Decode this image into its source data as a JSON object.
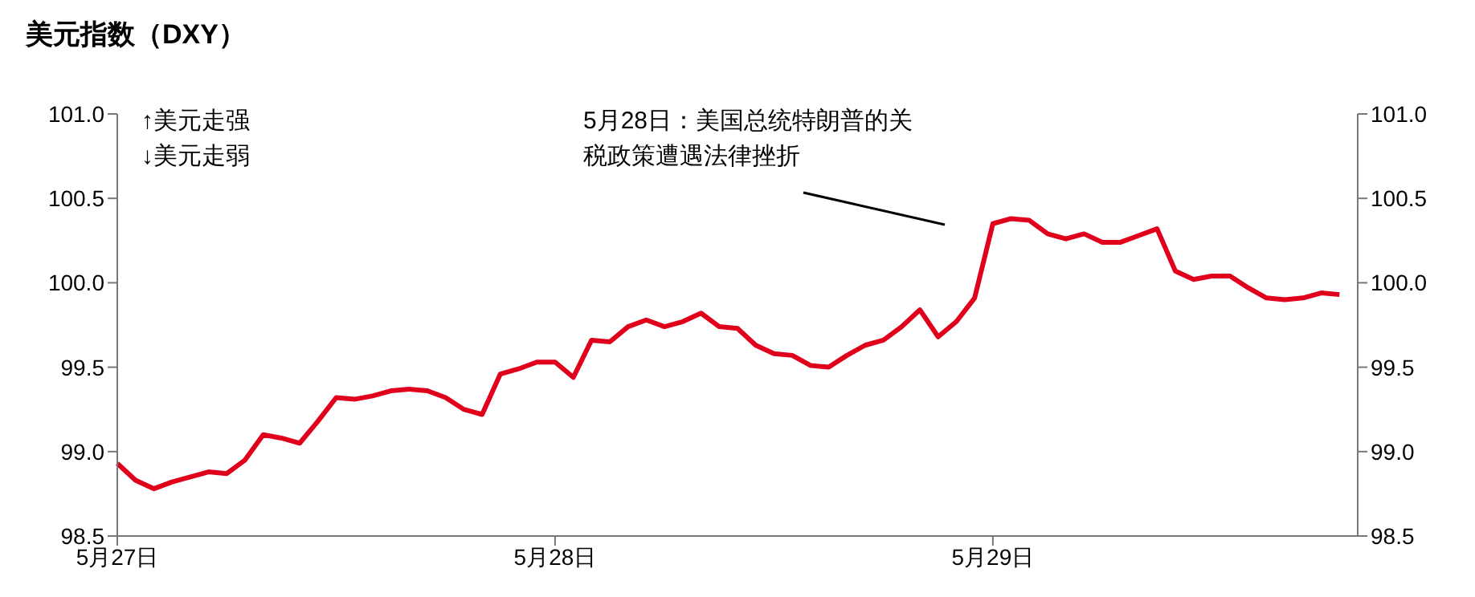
{
  "chart_data": {
    "type": "line",
    "title": "美元指数（DXY）",
    "categories": [
      "5月27日",
      null,
      null,
      null,
      null,
      null,
      null,
      null,
      null,
      null,
      null,
      null,
      null,
      null,
      null,
      null,
      null,
      null,
      null,
      null,
      null,
      null,
      null,
      null,
      "5月28日",
      null,
      null,
      null,
      null,
      null,
      null,
      null,
      null,
      null,
      null,
      null,
      null,
      null,
      null,
      null,
      null,
      null,
      null,
      null,
      null,
      null,
      null,
      null,
      "5月29日",
      null,
      null,
      null,
      null,
      null,
      null,
      null,
      null,
      null,
      null,
      null,
      null,
      null,
      null,
      null,
      null,
      null,
      null,
      null,
      null
    ],
    "series": [
      {
        "color": "#e0001b",
        "values": [
          98.93,
          98.83,
          98.78,
          98.82,
          98.85,
          98.88,
          98.87,
          98.95,
          99.1,
          99.08,
          99.05,
          99.18,
          99.32,
          99.31,
          99.33,
          99.36,
          99.37,
          99.36,
          99.32,
          99.25,
          99.22,
          99.46,
          99.49,
          99.53,
          99.53,
          99.44,
          99.66,
          99.65,
          99.74,
          99.78,
          99.74,
          99.77,
          99.82,
          99.74,
          99.73,
          99.63,
          99.58,
          99.57,
          99.51,
          99.5,
          99.57,
          99.63,
          99.66,
          99.74,
          99.84,
          99.68,
          99.77,
          99.91,
          100.35,
          100.38,
          100.37,
          100.29,
          100.26,
          100.29,
          100.24,
          100.24,
          100.28,
          100.32,
          100.07,
          100.02,
          100.04,
          100.04,
          99.97,
          99.91,
          99.9,
          99.91,
          99.94,
          99.93,
          null
        ]
      }
    ],
    "ylim": [
      98.5,
      101.0
    ],
    "yticks": [
      {
        "value": 98.5,
        "label": "98.5"
      },
      {
        "value": 99.0,
        "label": "99.0"
      },
      {
        "value": 99.5,
        "label": "99.5"
      },
      {
        "value": 100.0,
        "label": "100.0"
      },
      {
        "value": 100.5,
        "label": "100.5"
      },
      {
        "value": 101.0,
        "label": "101.0"
      }
    ],
    "y2lim": [
      98.5,
      101.0
    ],
    "y2ticks": [
      {
        "value": 98.5,
        "label": "98.5"
      },
      {
        "value": 99.0,
        "label": "99.0"
      },
      {
        "value": 99.5,
        "label": "99.5"
      },
      {
        "value": 100.0,
        "label": "100.0"
      },
      {
        "value": 100.5,
        "label": "100.5"
      },
      {
        "value": 101.0,
        "label": "101.0"
      }
    ],
    "annotations": [
      "↑美元走强",
      "↓美元走弱",
      "5月28日：美国总统特朗普的关税政策遭遇法律挫折"
    ],
    "grid": false,
    "marker": "none",
    "line_style": "solid"
  }
}
